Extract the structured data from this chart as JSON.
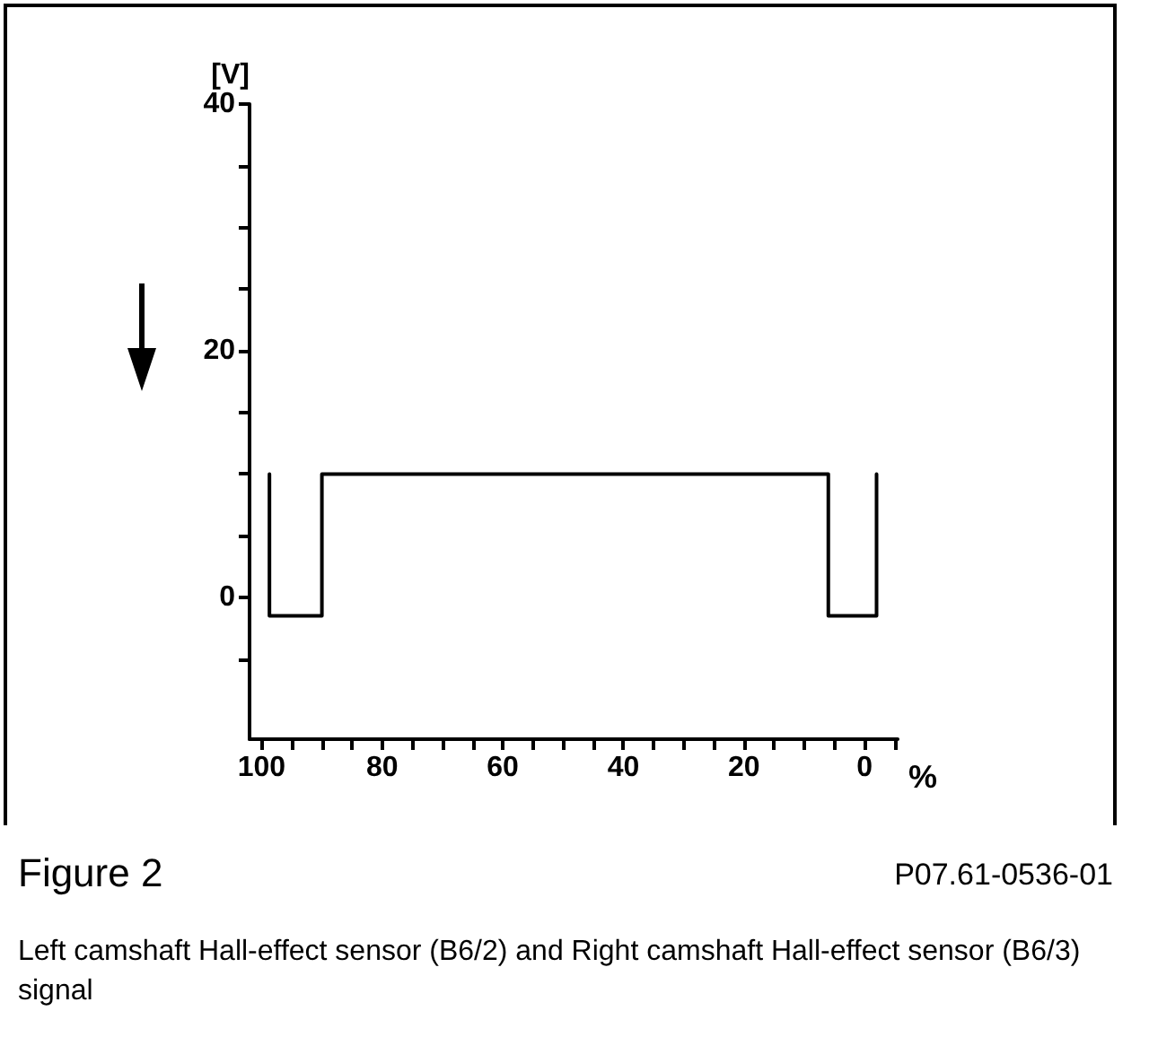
{
  "chart_data": {
    "type": "line",
    "x": [
      98.7,
      98.7,
      90,
      90,
      6,
      6,
      -2,
      -2
    ],
    "series": [
      {
        "color": "#000000",
        "values": [
          10,
          -1.5,
          -1.5,
          10,
          10,
          -1.5,
          -1.5,
          10
        ]
      }
    ],
    "xlim": [
      102,
      -5.5
    ],
    "xticks": [
      100,
      {
        "value": 95,
        "label": null
      },
      80,
      {
        "value": 90,
        "label": null
      },
      {
        "value": 85,
        "label": null
      },
      {
        "value": 75,
        "label": null
      },
      {
        "value": 70,
        "label": null
      },
      {
        "value": 65,
        "label": null
      },
      60,
      {
        "value": 55,
        "label": null
      },
      {
        "value": 50,
        "label": null
      },
      {
        "value": 45,
        "label": null
      },
      40,
      {
        "value": 35,
        "label": null
      },
      {
        "value": 30,
        "label": null
      },
      {
        "value": 25,
        "label": null
      },
      20,
      {
        "value": 15,
        "label": null
      },
      {
        "value": 10,
        "label": null
      },
      {
        "value": 5,
        "label": null
      },
      0,
      {
        "value": -5,
        "label": null
      }
    ],
    "ylim": [
      -11.5,
      40
    ],
    "yticks": [
      {
        "value": -5,
        "label": null
      },
      0,
      {
        "value": 5,
        "label": null
      },
      {
        "value": 10,
        "label": null
      },
      {
        "value": 15,
        "label": null
      },
      20,
      {
        "value": 25,
        "label": null
      },
      {
        "value": 30,
        "label": null
      },
      {
        "value": 35,
        "label": null
      },
      40
    ],
    "xlabel": "%",
    "ylabel": "[V]",
    "marker": "none",
    "line_style": "solid",
    "grid": false,
    "annotations": [
      "Figure 2",
      "P07.61-0536-01",
      "Left camshaft Hall-effect sensor (B6/2) and Right camshaft Hall-effect sensor (B6/3) signal"
    ]
  }
}
